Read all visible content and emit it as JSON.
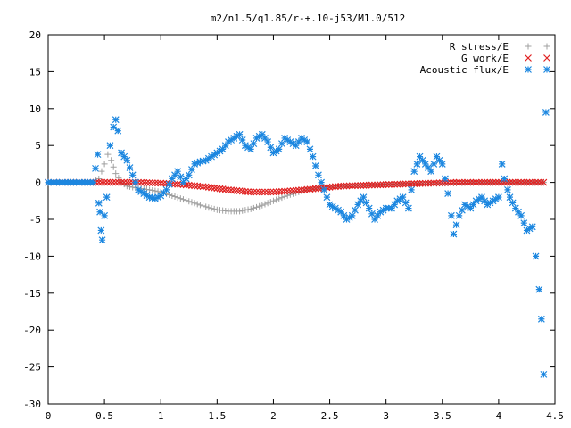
{
  "chart_data": {
    "type": "scatter",
    "title": "m2/n1.5/q1.85/r-+.10-j53/M1.0/512",
    "xlabel": "",
    "ylabel": "",
    "xlim": [
      0,
      4.5
    ],
    "ylim": [
      -30,
      20
    ],
    "x_ticks": [
      "0",
      "0.5",
      "1",
      "1.5",
      "2",
      "2.5",
      "3",
      "3.5",
      "4",
      "4.5"
    ],
    "y_ticks": [
      "20",
      "15",
      "10",
      "5",
      "0",
      "-5",
      "-10",
      "-15",
      "-20",
      "-25",
      "-30"
    ],
    "legend_position": "top-right",
    "grid": false,
    "series": [
      {
        "name": "R stress/E",
        "marker": "plus",
        "color": "#a0a0a0",
        "x": [
          0.0,
          0.1,
          0.2,
          0.3,
          0.4,
          0.45,
          0.5,
          0.53,
          0.56,
          0.6,
          0.65,
          0.7,
          0.8,
          0.9,
          1.0,
          1.1,
          1.2,
          1.3,
          1.4,
          1.5,
          1.6,
          1.7,
          1.8,
          1.9,
          2.0,
          2.1,
          2.2,
          2.3,
          2.4,
          2.5,
          2.6,
          2.7,
          2.8,
          2.9,
          3.0,
          3.2,
          3.4,
          3.6,
          3.8,
          4.0,
          4.2,
          4.4
        ],
        "y": [
          0.0,
          0.0,
          0.0,
          0.0,
          0.0,
          0.5,
          2.5,
          3.8,
          3.0,
          1.2,
          0.0,
          -0.5,
          -0.8,
          -1.0,
          -1.3,
          -1.8,
          -2.3,
          -2.8,
          -3.3,
          -3.7,
          -3.9,
          -3.9,
          -3.6,
          -3.1,
          -2.5,
          -1.9,
          -1.4,
          -1.0,
          -0.8,
          -0.6,
          -0.5,
          -0.4,
          -0.35,
          -0.3,
          -0.25,
          -0.2,
          -0.15,
          -0.1,
          0.0,
          0.0,
          0.0,
          0.0
        ]
      },
      {
        "name": "G work/E",
        "marker": "cross",
        "color": "#e02020",
        "x": [
          0.0,
          0.2,
          0.4,
          0.6,
          0.8,
          1.0,
          1.2,
          1.4,
          1.6,
          1.8,
          2.0,
          2.2,
          2.4,
          2.6,
          2.8,
          3.0,
          3.2,
          3.4,
          3.6,
          3.8,
          4.0,
          4.2,
          4.4
        ],
        "y": [
          0.0,
          0.0,
          0.0,
          0.0,
          0.0,
          -0.1,
          -0.3,
          -0.6,
          -1.0,
          -1.3,
          -1.3,
          -1.1,
          -0.8,
          -0.5,
          -0.4,
          -0.3,
          -0.2,
          -0.1,
          0.0,
          0.0,
          0.0,
          0.0,
          0.0
        ]
      },
      {
        "name": "Acoustic flux/E",
        "marker": "star",
        "color": "#1c87e0",
        "x": [
          0.0,
          0.1,
          0.2,
          0.3,
          0.4,
          0.44,
          0.45,
          0.46,
          0.47,
          0.48,
          0.5,
          0.52,
          0.55,
          0.58,
          0.6,
          0.62,
          0.65,
          0.7,
          0.75,
          0.8,
          0.85,
          0.9,
          0.95,
          1.0,
          1.05,
          1.1,
          1.15,
          1.2,
          1.25,
          1.3,
          1.35,
          1.4,
          1.45,
          1.5,
          1.55,
          1.6,
          1.65,
          1.7,
          1.75,
          1.8,
          1.85,
          1.9,
          1.95,
          2.0,
          2.05,
          2.1,
          2.15,
          2.2,
          2.25,
          2.3,
          2.35,
          2.4,
          2.45,
          2.5,
          2.55,
          2.6,
          2.65,
          2.7,
          2.75,
          2.8,
          2.85,
          2.9,
          2.95,
          3.0,
          3.05,
          3.1,
          3.15,
          3.2,
          3.25,
          3.3,
          3.35,
          3.4,
          3.45,
          3.5,
          3.55,
          3.58,
          3.6,
          3.65,
          3.7,
          3.75,
          3.8,
          3.85,
          3.9,
          3.95,
          4.0,
          4.03,
          4.05,
          4.08,
          4.1,
          4.15,
          4.2,
          4.25,
          4.3,
          4.33,
          4.36,
          4.38,
          4.4,
          4.42
        ],
        "y": [
          0.0,
          0.0,
          0.0,
          0.0,
          0.0,
          3.8,
          -2.8,
          -4.0,
          -6.5,
          -7.8,
          -4.5,
          -2.0,
          5.0,
          7.5,
          8.5,
          7.0,
          4.0,
          3.0,
          1.0,
          -1.0,
          -1.5,
          -2.0,
          -2.2,
          -1.8,
          -1.0,
          0.5,
          1.5,
          0.0,
          1.0,
          2.5,
          2.8,
          3.0,
          3.5,
          4.0,
          4.5,
          5.5,
          6.0,
          6.5,
          5.0,
          4.5,
          6.0,
          6.5,
          5.5,
          4.0,
          4.5,
          6.0,
          5.5,
          5.0,
          6.0,
          5.5,
          3.5,
          1.0,
          -1.0,
          -3.0,
          -3.5,
          -4.0,
          -5.0,
          -4.5,
          -3.0,
          -2.0,
          -3.5,
          -5.0,
          -4.0,
          -3.5,
          -3.5,
          -2.5,
          -2.0,
          -3.5,
          1.5,
          3.5,
          2.5,
          1.5,
          3.5,
          2.5,
          -1.5,
          -4.5,
          -7.0,
          -4.5,
          -3.0,
          -3.5,
          -2.5,
          -2.0,
          -3.0,
          -2.5,
          -2.0,
          2.5,
          0.5,
          -1.0,
          -2.0,
          -3.5,
          -4.5,
          -6.5,
          -6.0,
          -10.0,
          -14.5,
          -18.5,
          -26.0,
          9.5
        ]
      }
    ]
  }
}
